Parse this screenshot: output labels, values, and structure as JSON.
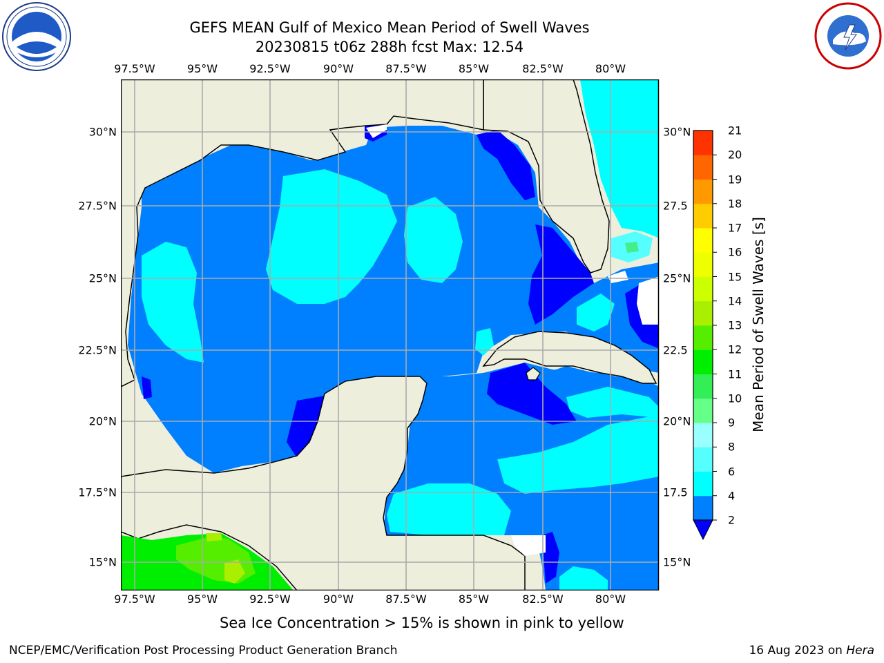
{
  "title": {
    "line1": "GEFS MEAN Gulf of Mexico Mean Period of Swell Waves",
    "line2": "20230815 t06z 288h fcst   Max: 12.54"
  },
  "map": {
    "lon_labels": [
      "97.5°W",
      "95°W",
      "92.5°W",
      "90°W",
      "87.5°W",
      "85°W",
      "82.5°W",
      "80°W"
    ],
    "lat_labels_left": [
      "30°N",
      "27.5°N",
      "25°N",
      "22.5°N",
      "20°N",
      "17.5°N",
      "15°N"
    ],
    "lat_labels_right": [
      "30°N",
      "27.5",
      "25°N",
      "22.5",
      "20°N",
      "17.5",
      "15°N"
    ],
    "colors": {
      "land": "#eeeedd",
      "ocean_base": "#0080ff",
      "deep_blue": "#0000ff",
      "cyan": "#00ffff",
      "light_cyan": "#55ffff",
      "green": "#00ee00",
      "grid": "#aaaaaa"
    }
  },
  "colorbar": {
    "label": "Mean Period of Swell Waves [s]",
    "ticks": [
      "2",
      "4",
      "6",
      "8",
      "9",
      "10",
      "11",
      "12",
      "13",
      "14",
      "15",
      "16",
      "17",
      "18",
      "19",
      "20",
      "21"
    ],
    "colors": [
      "#0080ff",
      "#00ffff",
      "#55ffff",
      "#99ffff",
      "#66ff88",
      "#33ee55",
      "#00ee00",
      "#55ee00",
      "#aaee00",
      "#ccff00",
      "#eeff00",
      "#ffff00",
      "#ffcc00",
      "#ff9900",
      "#ff6600",
      "#ff3300",
      "#ff0000"
    ]
  },
  "ice_note": "Sea Ice Concentration > 15% is shown in pink to yellow",
  "footer": {
    "left": "NCEP/EMC/Verification Post Processing Product Generation Branch",
    "right_date": "16 Aug 2023 on ",
    "right_host": "Hera"
  },
  "logos": {
    "left": "noaa-logo",
    "right": "nws-logo"
  }
}
